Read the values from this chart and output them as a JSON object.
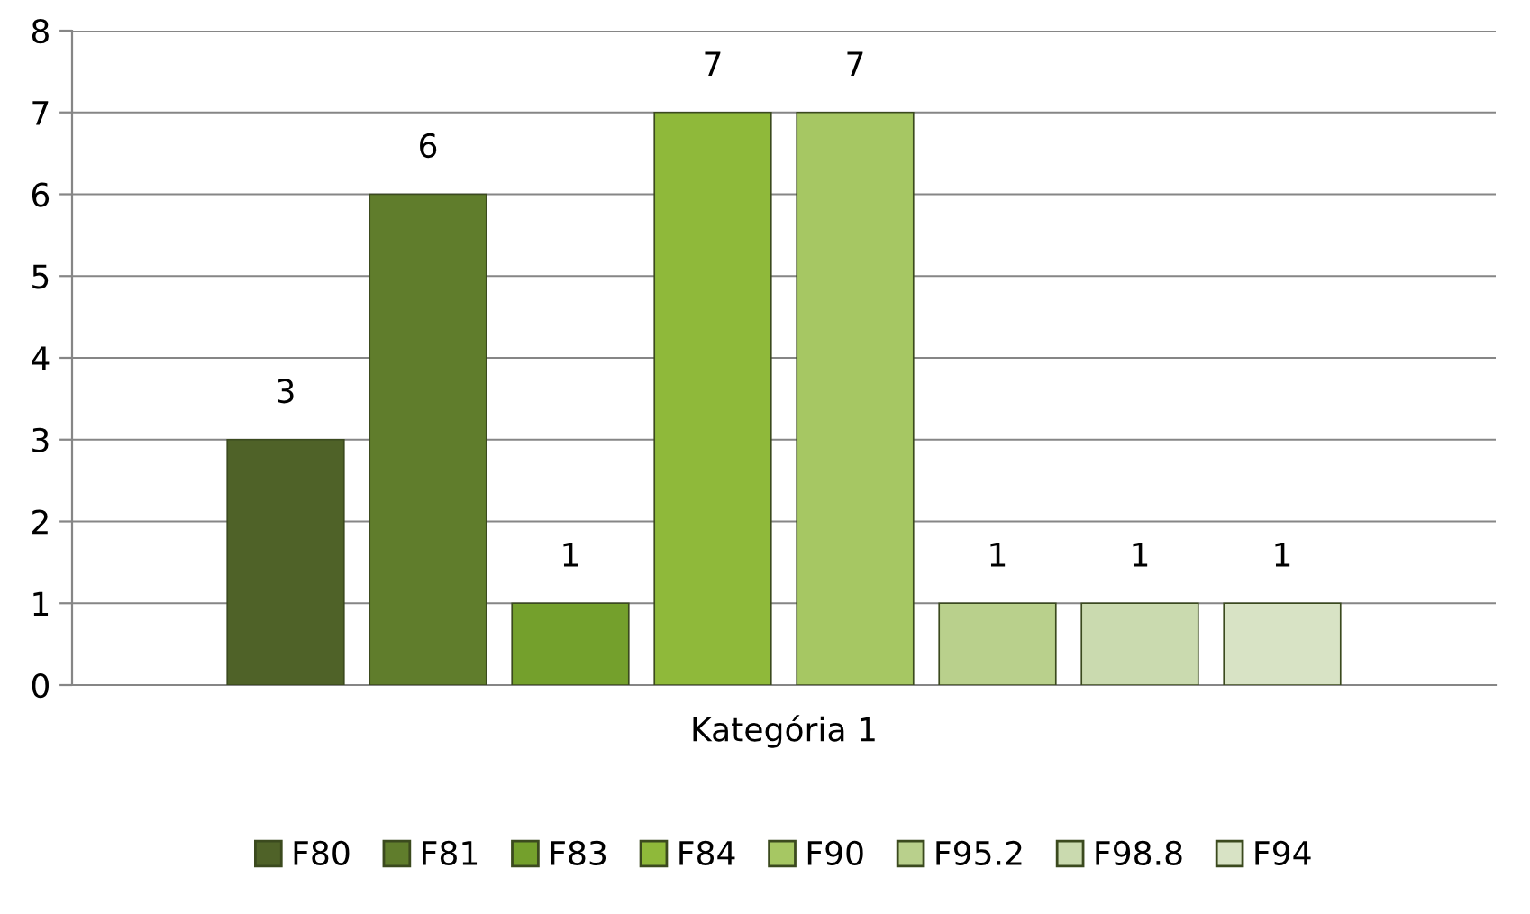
{
  "chart_data": {
    "type": "bar",
    "categories": [
      "Kategória 1"
    ],
    "series": [
      {
        "name": "F80",
        "color": "#4f6228",
        "values": [
          3
        ]
      },
      {
        "name": "F81",
        "color": "#607d2c",
        "values": [
          6
        ]
      },
      {
        "name": "F83",
        "color": "#74a02c",
        "values": [
          1
        ]
      },
      {
        "name": "F84",
        "color": "#8fb93a",
        "values": [
          7
        ]
      },
      {
        "name": "F90",
        "color": "#a6c763",
        "values": [
          7
        ]
      },
      {
        "name": "F95.2",
        "color": "#b9d08c",
        "values": [
          1
        ]
      },
      {
        "name": "F98.8",
        "color": "#cadaaf",
        "values": [
          1
        ]
      },
      {
        "name": "F94",
        "color": "#d8e3c5",
        "values": [
          1
        ]
      }
    ],
    "ylim": [
      0,
      8
    ],
    "yticks": [
      0,
      1,
      2,
      3,
      4,
      5,
      6,
      7,
      8
    ],
    "grid": "y",
    "legend": "bottom",
    "data_labels": true
  }
}
